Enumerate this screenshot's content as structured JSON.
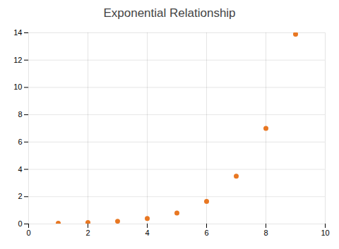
{
  "chart_data": {
    "type": "scatter",
    "title": "Exponential Relationship",
    "x": [
      1,
      2,
      3,
      4,
      5,
      6,
      7,
      8,
      9
    ],
    "values": [
      0.05,
      0.1,
      0.2,
      0.4,
      0.8,
      1.65,
      3.5,
      7.0,
      13.9
    ],
    "color": "#E87722",
    "xlim": [
      0,
      10
    ],
    "ylim": [
      0,
      14
    ],
    "xticks": [
      0,
      2,
      4,
      6,
      8,
      10
    ],
    "yticks": [
      0,
      2,
      4,
      6,
      8,
      10,
      12,
      14
    ],
    "grid": true
  }
}
